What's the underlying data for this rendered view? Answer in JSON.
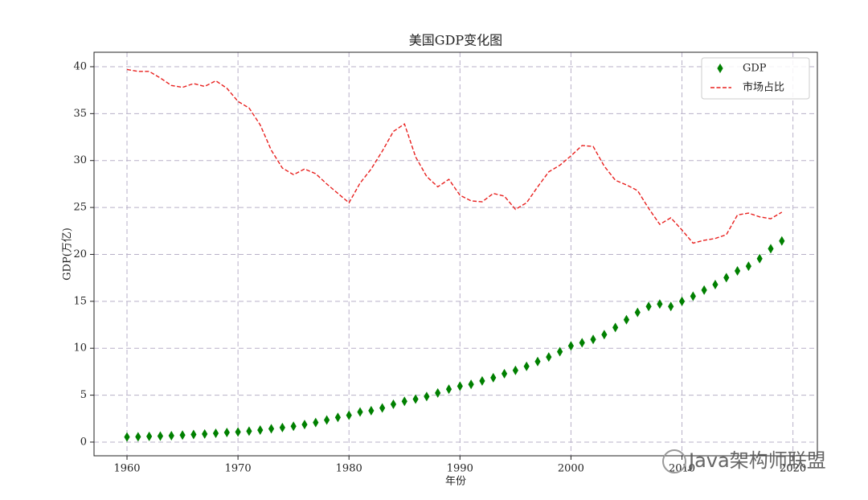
{
  "chart_data": {
    "type": "line",
    "title": "美国GDP变化图",
    "xlabel": "年份",
    "ylabel": "GDP(万亿)",
    "x": [
      1960,
      1961,
      1962,
      1963,
      1964,
      1965,
      1966,
      1967,
      1968,
      1969,
      1970,
      1971,
      1972,
      1973,
      1974,
      1975,
      1976,
      1977,
      1978,
      1979,
      1980,
      1981,
      1982,
      1983,
      1984,
      1985,
      1986,
      1987,
      1988,
      1989,
      1990,
      1991,
      1992,
      1993,
      1994,
      1995,
      1996,
      1997,
      1998,
      1999,
      2000,
      2001,
      2002,
      2003,
      2004,
      2005,
      2006,
      2007,
      2008,
      2009,
      2010,
      2011,
      2012,
      2013,
      2014,
      2015,
      2016,
      2017,
      2018,
      2019
    ],
    "series": [
      {
        "name": "GDP",
        "color": "#008000",
        "marker": "diamond",
        "values": [
          0.543,
          0.563,
          0.605,
          0.638,
          0.686,
          0.744,
          0.815,
          0.862,
          0.942,
          1.02,
          1.073,
          1.165,
          1.28,
          1.425,
          1.545,
          1.684,
          1.873,
          2.082,
          2.352,
          2.627,
          2.857,
          3.207,
          3.343,
          3.634,
          4.037,
          4.339,
          4.58,
          4.855,
          5.236,
          5.642,
          5.963,
          6.158,
          6.52,
          6.859,
          7.287,
          7.64,
          8.073,
          8.578,
          9.063,
          9.631,
          10.252,
          10.582,
          10.936,
          11.458,
          12.214,
          13.037,
          13.815,
          14.452,
          14.713,
          14.449,
          14.992,
          15.543,
          16.197,
          16.785,
          17.527,
          18.238,
          18.745,
          19.543,
          20.612,
          21.433
        ]
      },
      {
        "name": "市场占比",
        "color": "#e8201e",
        "linestyle": "dashed",
        "values": [
          39.7,
          39.5,
          39.5,
          38.8,
          38.0,
          37.8,
          38.2,
          37.9,
          38.5,
          37.7,
          36.3,
          35.6,
          33.8,
          31.1,
          29.2,
          28.5,
          29.1,
          28.6,
          27.5,
          26.5,
          25.5,
          27.6,
          29.1,
          31.0,
          33.1,
          33.9,
          30.4,
          28.3,
          27.2,
          28.0,
          26.3,
          25.7,
          25.6,
          26.5,
          26.2,
          24.8,
          25.5,
          27.2,
          28.8,
          29.5,
          30.5,
          31.6,
          31.5,
          29.4,
          27.9,
          27.4,
          26.8,
          24.9,
          23.2,
          23.9,
          22.6,
          21.2,
          21.5,
          21.7,
          22.1,
          24.2,
          24.4,
          24.0,
          23.8,
          24.5
        ]
      }
    ],
    "xlim": [
      1957.03,
      2022.2
    ],
    "xticks": [
      1960,
      1970,
      1980,
      1990,
      2000,
      2010,
      2020
    ],
    "ylim": [
      -1.46,
      41.54
    ],
    "yticks": [
      0,
      5,
      10,
      15,
      20,
      25,
      30,
      35,
      40
    ],
    "grid": true,
    "legend": "upper right",
    "watermark": "Java架构师联盟"
  }
}
